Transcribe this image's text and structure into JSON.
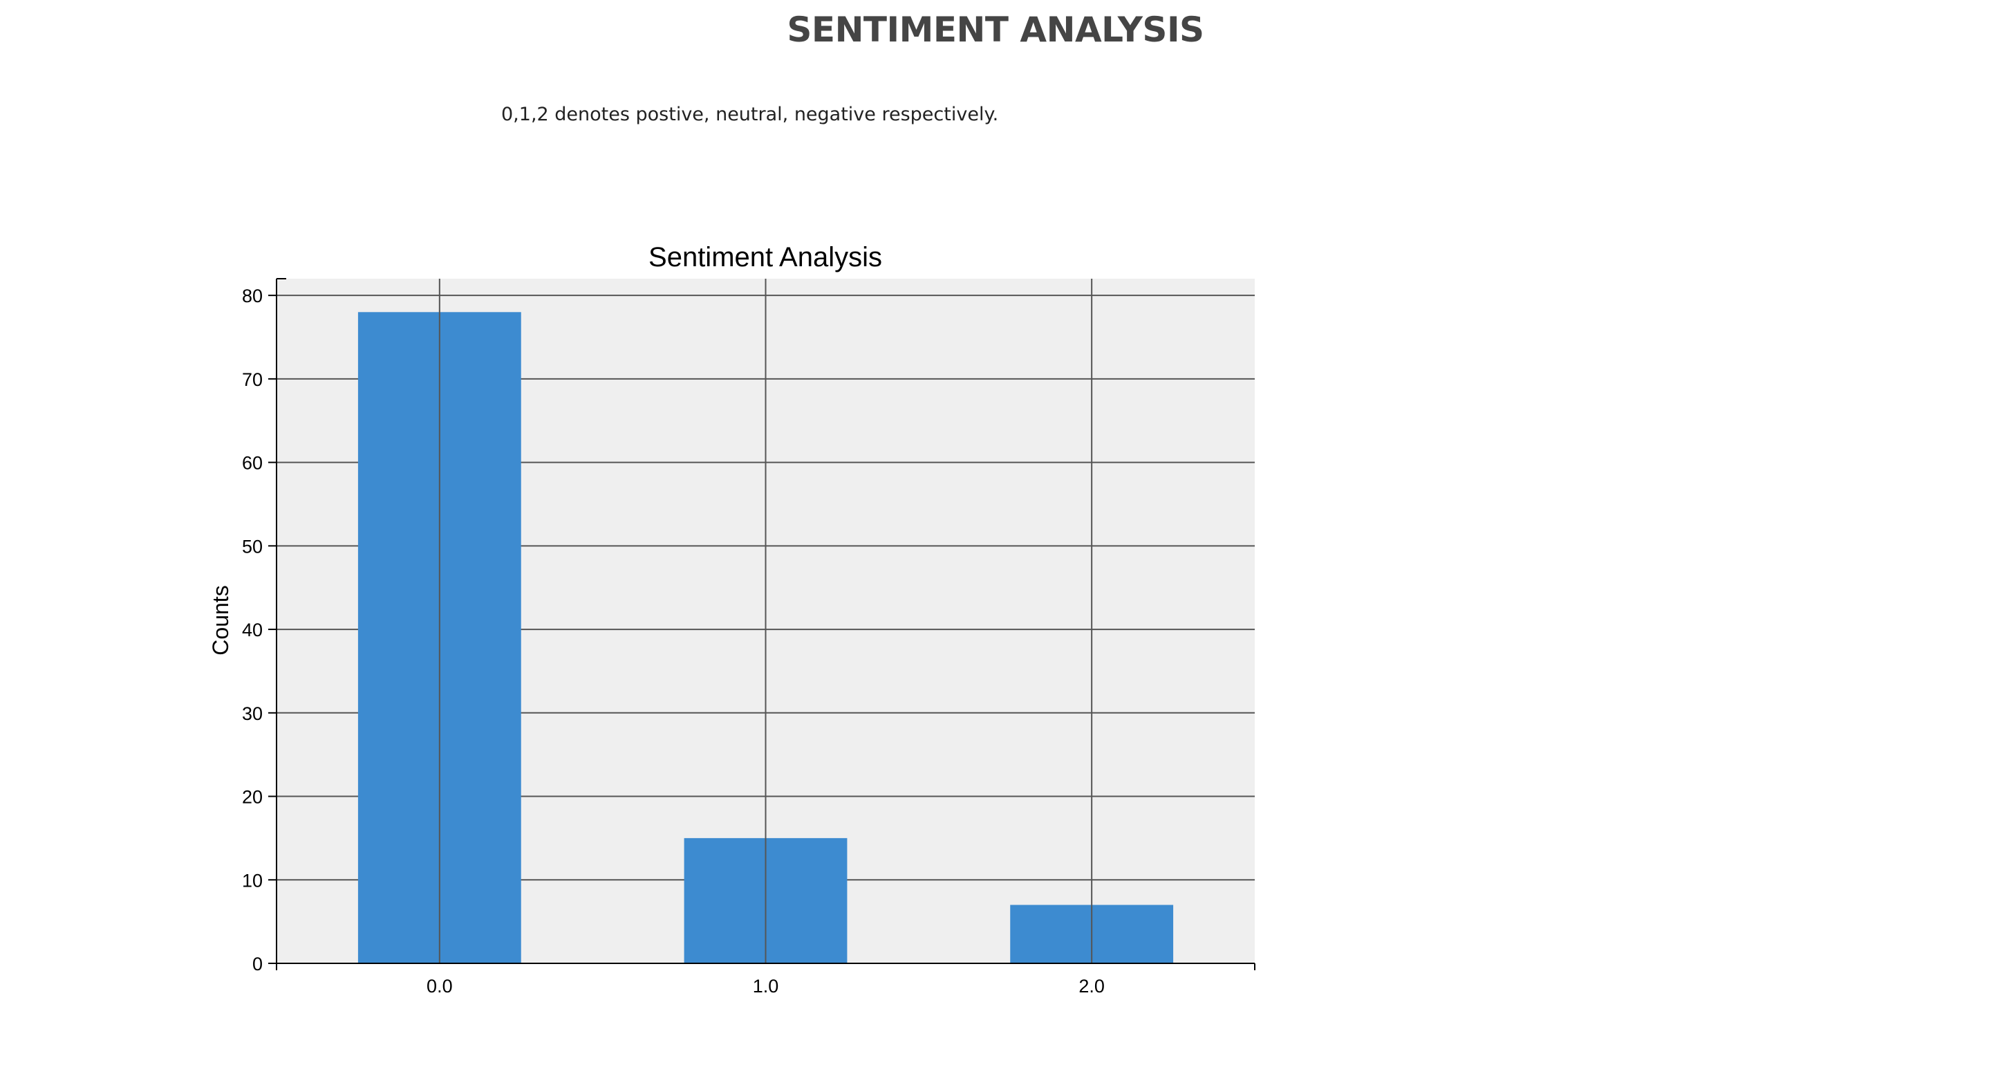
{
  "header": {
    "title": "SENTIMENT ANALYSIS",
    "note": "0,1,2 denotes postive, neutral, negative respectively."
  },
  "chart_data": {
    "type": "bar",
    "title": "Sentiment Analysis",
    "xlabel": "",
    "ylabel": "Counts",
    "categories": [
      "0.0",
      "1.0",
      "2.0"
    ],
    "values": [
      78,
      15,
      7
    ],
    "ylim": [
      0,
      82
    ],
    "yticks": [
      0,
      10,
      20,
      30,
      40,
      50,
      60,
      70,
      80
    ],
    "grid": true,
    "bar_color": "#3d8bd0",
    "plot_background": "#efefef",
    "grid_color": "#555555"
  }
}
